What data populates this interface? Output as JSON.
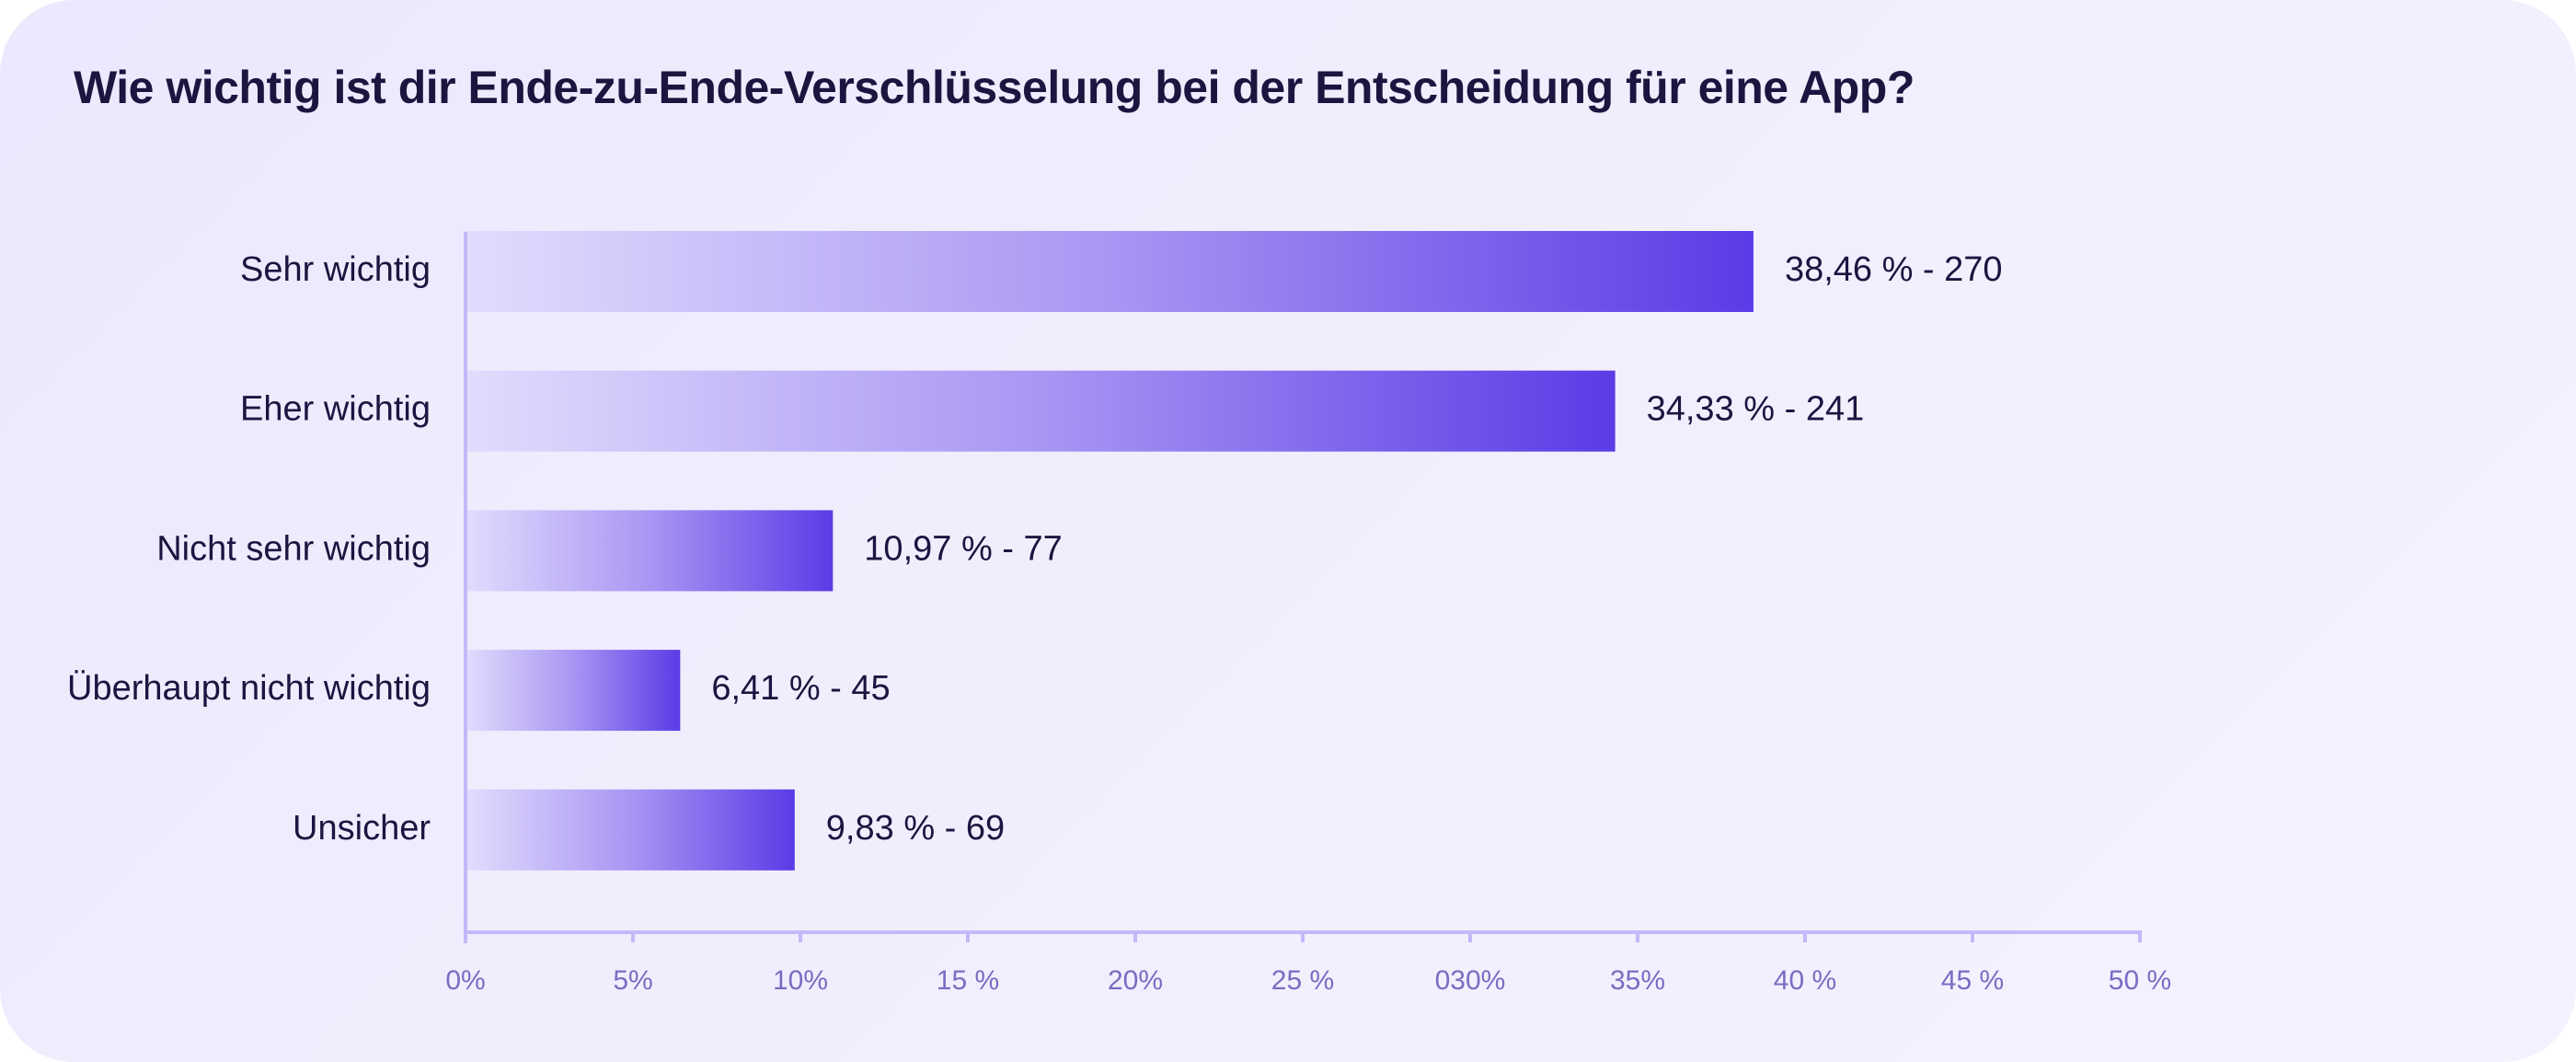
{
  "colors": {
    "axis": "#c4b8fa",
    "bar_start": "#e2dcfd",
    "bar_mid": "#a996f3",
    "bar_end": "#5b3be6",
    "text_dark": "#1c1540",
    "tick_text": "#7a6cc2"
  },
  "chart_data": {
    "type": "bar",
    "orientation": "horizontal",
    "title": "Wie wichtig ist dir Ende-zu-Ende-Verschlüsselung bei der Entscheidung für eine App?",
    "xlabel": "",
    "ylabel": "",
    "xlim": [
      0,
      50
    ],
    "grid": false,
    "legend": "none",
    "categories": [
      "Sehr wichtig",
      "Eher wichtig",
      "Nicht sehr wichtig",
      "Überhaupt nicht wichtig",
      "Unsicher"
    ],
    "values": [
      38.46,
      34.33,
      10.97,
      6.41,
      9.83
    ],
    "counts": [
      270,
      241,
      77,
      45,
      69
    ],
    "data_labels": [
      "38,46 % - 270",
      "34,33 % - 241",
      "10,97 % - 77",
      "6,41 % - 45",
      "9,83 % - 69"
    ],
    "x_ticks": [
      0,
      5,
      10,
      15,
      20,
      25,
      30,
      35,
      40,
      45,
      50
    ],
    "x_tick_labels": [
      "0%",
      "5%",
      "10%",
      "15 %",
      "20%",
      "25 %",
      "030%",
      "35%",
      "40 %",
      "45 %",
      "50 %"
    ]
  }
}
